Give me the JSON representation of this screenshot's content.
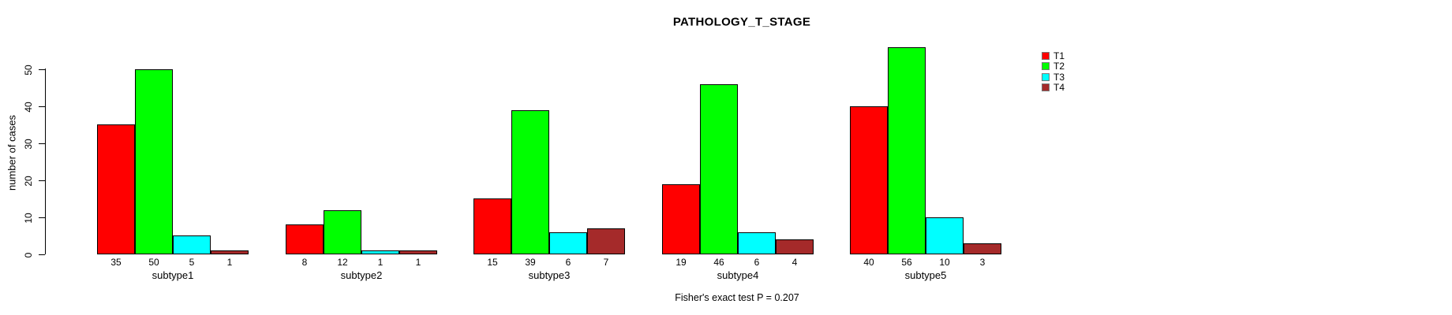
{
  "title": "PATHOLOGY_T_STAGE",
  "chart_data": {
    "type": "bar",
    "title": "PATHOLOGY_T_STAGE",
    "xlabel": "",
    "ylabel": "number of cases",
    "annotation": "Fisher's exact test P = 0.207",
    "categories": [
      "subtype1",
      "subtype2",
      "subtype3",
      "subtype4",
      "subtype5"
    ],
    "series": [
      {
        "name": "T1",
        "color": "#ff0000",
        "values": [
          35,
          8,
          15,
          19,
          40
        ]
      },
      {
        "name": "T2",
        "color": "#00ff00",
        "values": [
          50,
          12,
          39,
          46,
          56
        ]
      },
      {
        "name": "T3",
        "color": "#00ffff",
        "values": [
          5,
          1,
          6,
          6,
          10
        ]
      },
      {
        "name": "T4",
        "color": "#a52a2a",
        "values": [
          1,
          1,
          7,
          4,
          3
        ]
      }
    ],
    "y_ticks": [
      0,
      10,
      20,
      30,
      40,
      50
    ],
    "ylim": [
      0,
      56
    ],
    "grid": false,
    "legend_position": "top-right",
    "bar_value_labels_shown": true,
    "background_color": "#ffffff",
    "axis_color": "#000000"
  }
}
